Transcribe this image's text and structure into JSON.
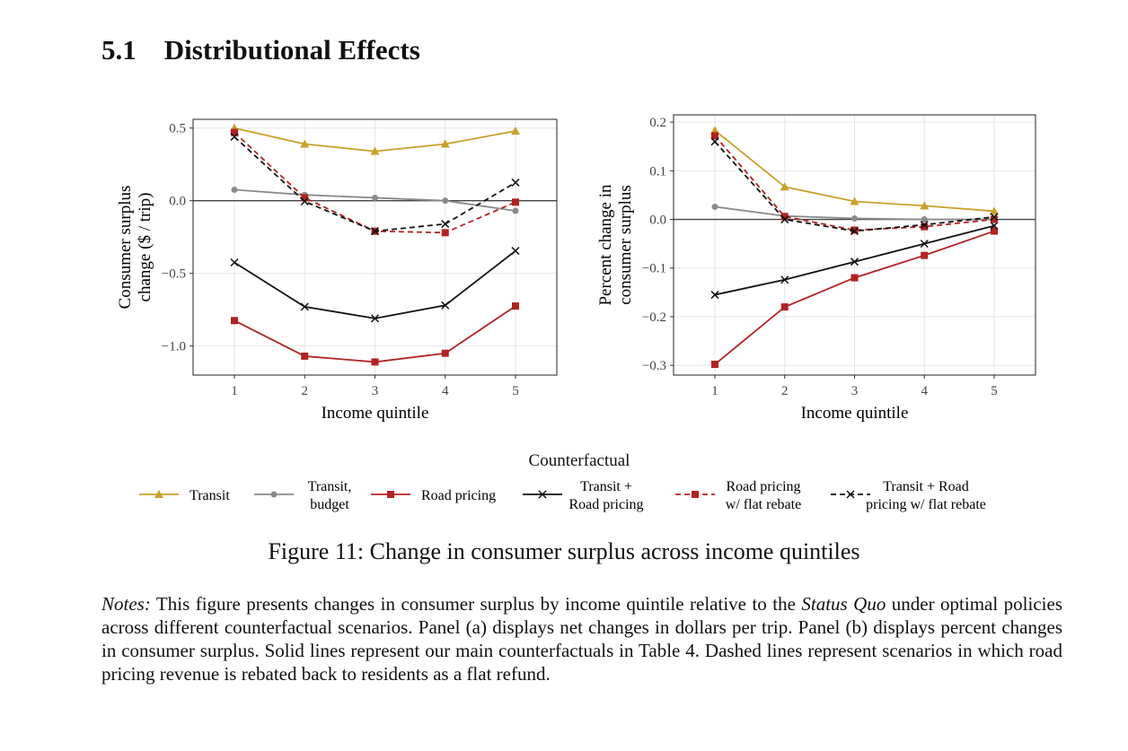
{
  "section": {
    "number": "5.1",
    "title": "Distributional Effects"
  },
  "caption": "Figure 11: Change in consumer surplus across income quintiles",
  "notes": {
    "label": "Notes:",
    "text1": " This figure presents changes in consumer surplus by income quintile relative to the ",
    "em": "Status Quo",
    "text2": " under optimal policies across different counterfactual scenarios. Panel (a) displays net changes in dollars per trip. Panel (b) displays percent changes in consumer surplus. Solid lines represent our main counterfactuals in Table 4. Dashed lines represent scenarios in which road pricing revenue is rebated back to residents as a flat refund."
  },
  "legend": {
    "title": "Counterfactual"
  },
  "chart_data": [
    {
      "type": "line",
      "title": "",
      "xlabel": "Income quintile",
      "ylabel": "Consumer surplus change ($ / trip)",
      "ylabel_lines": [
        "Consumer surplus",
        "change ($ / trip)"
      ],
      "x": [
        1,
        2,
        3,
        4,
        5
      ],
      "ylim": [
        -1.2,
        0.56
      ],
      "yticks": [
        0.5,
        0.0,
        -0.5,
        -1.0
      ],
      "ytick_labels": [
        "0.5",
        "0.0",
        "−0.5",
        "−1.0"
      ],
      "grid": true,
      "legend_position": "bottom",
      "series": [
        {
          "name": "Transit",
          "values": [
            0.5,
            0.39,
            0.34,
            0.39,
            0.48
          ]
        },
        {
          "name": "Transit, budget",
          "values": [
            0.075,
            0.04,
            0.02,
            0.0,
            -0.07
          ]
        },
        {
          "name": "Road pricing",
          "values": [
            -0.825,
            -1.07,
            -1.11,
            -1.05,
            -0.725
          ]
        },
        {
          "name": "Transit + Road pricing",
          "values": [
            -0.425,
            -0.73,
            -0.81,
            -0.72,
            -0.345
          ]
        },
        {
          "name": "Road pricing w/ flat rebate",
          "values": [
            0.47,
            0.02,
            -0.21,
            -0.22,
            -0.01
          ]
        },
        {
          "name": "Transit + Road pricing w/ flat rebate",
          "values": [
            0.44,
            -0.005,
            -0.21,
            -0.16,
            0.125
          ]
        }
      ]
    },
    {
      "type": "line",
      "title": "",
      "xlabel": "Income quintile",
      "ylabel": "Percent change in consumer surplus",
      "ylabel_lines": [
        "Percent change in",
        "consumer surplus"
      ],
      "x": [
        1,
        2,
        3,
        4,
        5
      ],
      "ylim": [
        -0.32,
        0.215
      ],
      "yticks": [
        0.2,
        0.1,
        0.0,
        -0.1,
        -0.2,
        -0.3
      ],
      "ytick_labels": [
        "0.2",
        "0.1",
        "0.0",
        "−0.1",
        "−0.2",
        "−0.3"
      ],
      "grid": true,
      "legend_position": "bottom",
      "series": [
        {
          "name": "Transit",
          "values": [
            0.183,
            0.067,
            0.037,
            0.028,
            0.017
          ]
        },
        {
          "name": "Transit, budget",
          "values": [
            0.026,
            0.007,
            0.002,
            0.0,
            0.0
          ]
        },
        {
          "name": "Road pricing",
          "values": [
            -0.298,
            -0.18,
            -0.12,
            -0.074,
            -0.024
          ]
        },
        {
          "name": "Transit + Road pricing",
          "values": [
            -0.155,
            -0.124,
            -0.087,
            -0.05,
            -0.013
          ]
        },
        {
          "name": "Road pricing w/ flat rebate",
          "values": [
            0.172,
            0.006,
            -0.022,
            -0.015,
            0.0
          ]
        },
        {
          "name": "Transit + Road pricing w/ flat rebate",
          "values": [
            0.16,
            0.0,
            -0.024,
            -0.011,
            0.005
          ]
        }
      ]
    }
  ],
  "series_style": [
    {
      "color": "#C9A02A",
      "dash": "",
      "marker": "triangle",
      "label_lines": [
        "Transit"
      ]
    },
    {
      "color": "#8A8A8A",
      "dash": "",
      "marker": "circle",
      "label_lines": [
        "Transit,",
        "budget"
      ]
    },
    {
      "color": "#B22222",
      "dash": "",
      "marker": "square",
      "label_lines": [
        "Road pricing"
      ]
    },
    {
      "color": "#111111",
      "dash": "",
      "marker": "x",
      "label_lines": [
        "Transit +",
        "Road pricing"
      ]
    },
    {
      "color": "#B22222",
      "dash": "6,4",
      "marker": "square",
      "label_lines": [
        "Road pricing",
        "w/ flat rebate"
      ]
    },
    {
      "color": "#111111",
      "dash": "6,4",
      "marker": "x",
      "label_lines": [
        "Transit + Road",
        "pricing w/ flat rebate"
      ]
    }
  ]
}
